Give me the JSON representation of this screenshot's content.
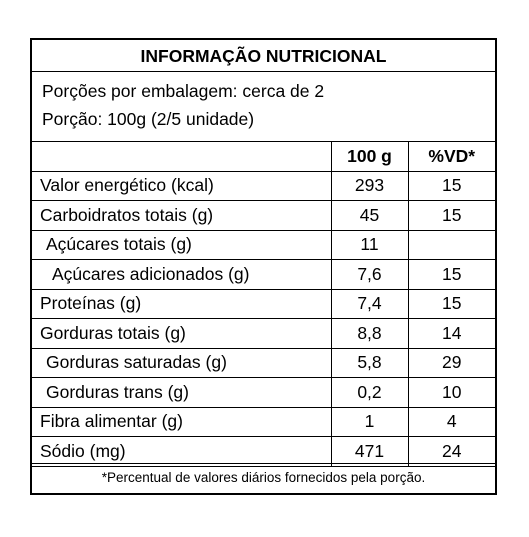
{
  "title": "INFORMAÇÃO NUTRICIONAL",
  "servings_per_package": "Porções por embalagem: cerca de 2",
  "serving_size": "Porção: 100g (2/5 unidade)",
  "header": {
    "col_amount": "100 g",
    "col_dv": "%VD*"
  },
  "rows": [
    {
      "label": "Valor energético (kcal)",
      "amount": "293",
      "dv": "15"
    },
    {
      "label": "Carboidratos totais (g)",
      "amount": "45",
      "dv": "15"
    },
    {
      "label": "Açúcares totais (g)",
      "amount": "11",
      "dv": ""
    },
    {
      "label": "Açúcares adicionados (g)",
      "amount": "7,6",
      "dv": "15"
    },
    {
      "label": "Proteínas (g)",
      "amount": "7,4",
      "dv": "15"
    },
    {
      "label": "Gorduras totais (g)",
      "amount": "8,8",
      "dv": "14"
    },
    {
      "label": "Gorduras saturadas (g)",
      "amount": "5,8",
      "dv": "29"
    },
    {
      "label": "Gorduras trans (g)",
      "amount": "0,2",
      "dv": "10"
    },
    {
      "label": "Fibra alimentar (g)",
      "amount": "1",
      "dv": "4"
    },
    {
      "label": "Sódio (mg)",
      "amount": "471",
      "dv": "24"
    }
  ],
  "footnote": "*Percentual de valores diários fornecidos pela porção."
}
